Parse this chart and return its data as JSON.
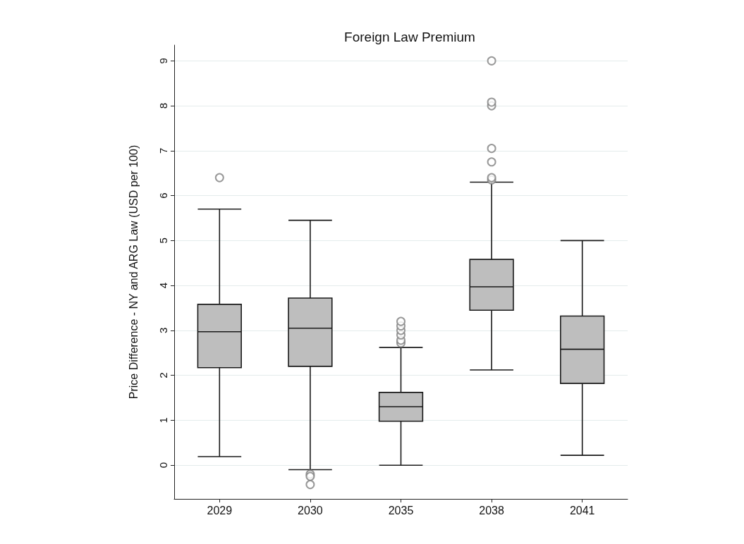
{
  "chart_data": {
    "type": "box",
    "title": "Foreign Law Premium",
    "ylabel": "Price Difference - NY and ARG Law (USD per 100)",
    "categories": [
      "2029",
      "2030",
      "2035",
      "2038",
      "2041"
    ],
    "boxes": [
      {
        "low": 0.19,
        "q1": 2.17,
        "median": 2.97,
        "q3": 3.58,
        "high": 5.7,
        "outliers": [
          6.4
        ]
      },
      {
        "low": -0.1,
        "q1": 2.2,
        "median": 3.05,
        "q3": 3.72,
        "high": 5.45,
        "outliers": [
          -0.2,
          -0.25,
          -0.43
        ]
      },
      {
        "low": 0,
        "q1": 0.98,
        "median": 1.3,
        "q3": 1.62,
        "high": 2.62,
        "outliers": [
          2.72,
          2.78,
          2.9,
          3.0,
          3.1,
          3.2
        ]
      },
      {
        "low": 2.12,
        "q1": 3.45,
        "median": 3.97,
        "q3": 4.58,
        "high": 6.3,
        "outliers": [
          6.35,
          6.4,
          6.75,
          7.05,
          8.0,
          8.08,
          9.0
        ]
      },
      {
        "low": 0.22,
        "q1": 1.82,
        "median": 2.58,
        "q3": 3.32,
        "high": 5.0
      }
    ],
    "color": "#bebebe",
    "ylim": [
      -0.75,
      9.35
    ],
    "yticks": [
      0,
      1,
      2,
      3,
      4,
      5,
      6,
      7,
      8,
      9
    ],
    "grid": "y",
    "marker": "circle"
  }
}
